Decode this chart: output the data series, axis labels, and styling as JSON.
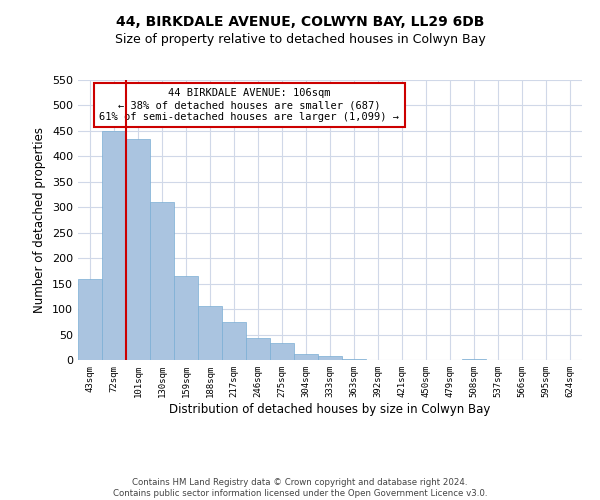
{
  "title": "44, BIRKDALE AVENUE, COLWYN BAY, LL29 6DB",
  "subtitle": "Size of property relative to detached houses in Colwyn Bay",
  "xlabel": "Distribution of detached houses by size in Colwyn Bay",
  "ylabel": "Number of detached properties",
  "bar_labels": [
    "43sqm",
    "72sqm",
    "101sqm",
    "130sqm",
    "159sqm",
    "188sqm",
    "217sqm",
    "246sqm",
    "275sqm",
    "304sqm",
    "333sqm",
    "363sqm",
    "392sqm",
    "421sqm",
    "450sqm",
    "479sqm",
    "508sqm",
    "537sqm",
    "566sqm",
    "595sqm",
    "624sqm"
  ],
  "bar_values": [
    160,
    450,
    435,
    310,
    165,
    107,
    75,
    43,
    33,
    11,
    7,
    1,
    0,
    0,
    0,
    0,
    2,
    0,
    0,
    0,
    0
  ],
  "bar_color": "#aac4e0",
  "bar_edge_color": "#7aaed4",
  "grid_color": "#d0d8e8",
  "background_color": "#ffffff",
  "red_line_index": 2,
  "annotation_line1": "44 BIRKDALE AVENUE: 106sqm",
  "annotation_line2": "← 38% of detached houses are smaller (687)",
  "annotation_line3": "61% of semi-detached houses are larger (1,099) →",
  "annotation_box_color": "#ffffff",
  "annotation_border_color": "#cc0000",
  "red_line_color": "#cc0000",
  "ylim": [
    0,
    550
  ],
  "yticks": [
    0,
    50,
    100,
    150,
    200,
    250,
    300,
    350,
    400,
    450,
    500,
    550
  ],
  "footer_line1": "Contains HM Land Registry data © Crown copyright and database right 2024.",
  "footer_line2": "Contains public sector information licensed under the Open Government Licence v3.0."
}
